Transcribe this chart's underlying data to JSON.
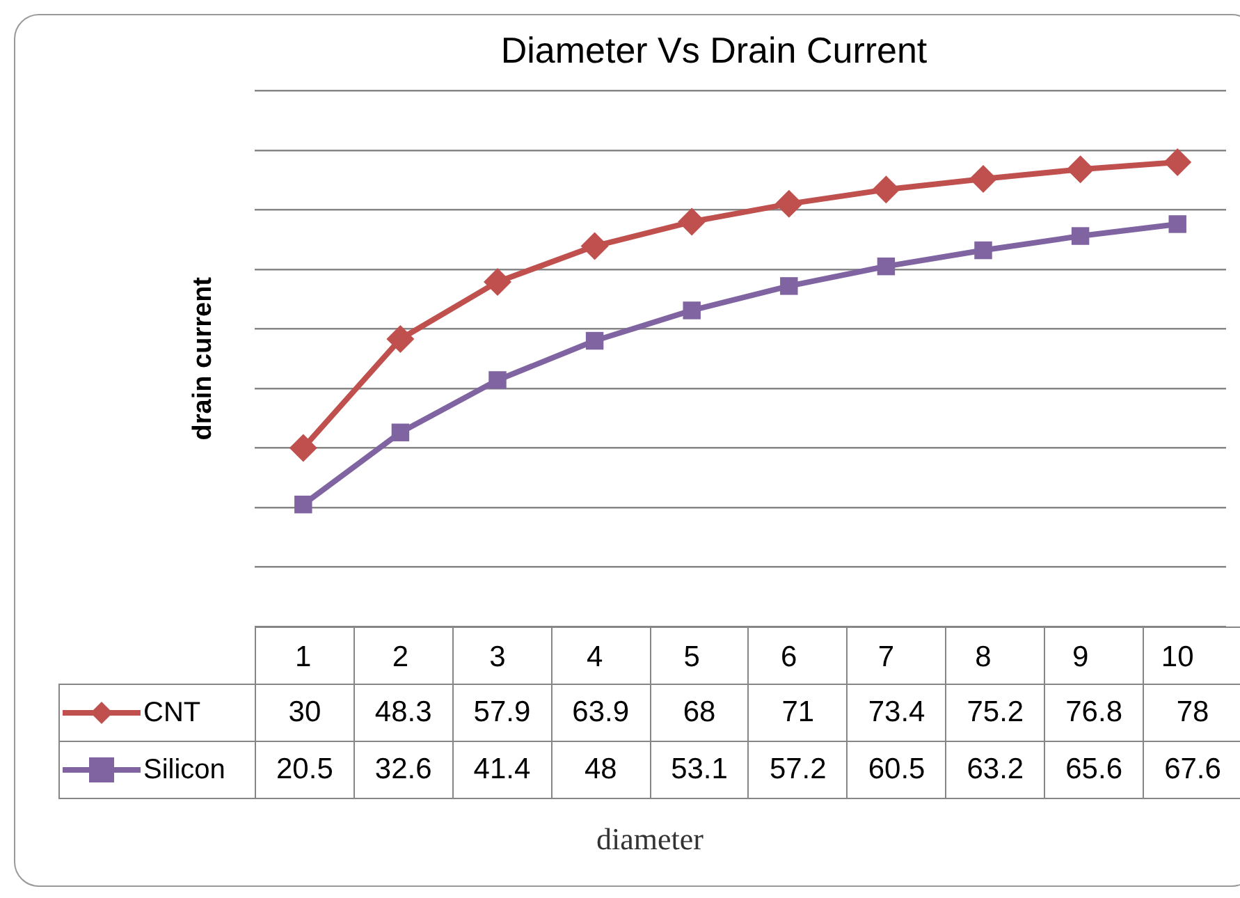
{
  "chart_data": {
    "type": "line",
    "title": "Diameter Vs Drain Current",
    "xlabel": "diameter",
    "ylabel": "drain current",
    "categories": [
      "1",
      "2",
      "3",
      "4",
      "5",
      "6",
      "7",
      "8",
      "9",
      "10"
    ],
    "series": [
      {
        "name": "CNT",
        "color": "#c0504d",
        "marker": "diamond",
        "values": [
          30,
          48.3,
          57.9,
          63.9,
          68,
          71,
          73.4,
          75.2,
          76.8,
          78
        ]
      },
      {
        "name": "Silicon",
        "color": "#8064a2",
        "marker": "square",
        "values": [
          20.5,
          32.6,
          41.4,
          48,
          53.1,
          57.2,
          60.5,
          63.2,
          65.6,
          67.6
        ]
      }
    ],
    "ylim": [
      0,
      90
    ],
    "yticks": [
      {
        "value": 0,
        "label": null
      },
      {
        "value": 10,
        "label": null
      },
      {
        "value": 20,
        "label": null
      },
      {
        "value": 30,
        "label": null
      },
      {
        "value": 40,
        "label": null
      },
      {
        "value": 50,
        "label": null
      },
      {
        "value": 60,
        "label": null
      },
      {
        "value": 70,
        "label": null
      },
      {
        "value": 80,
        "label": null
      },
      {
        "value": 90,
        "label": null
      }
    ],
    "tick_labels": "x",
    "grid": "y",
    "legend": "bottom",
    "data_labels": true
  }
}
